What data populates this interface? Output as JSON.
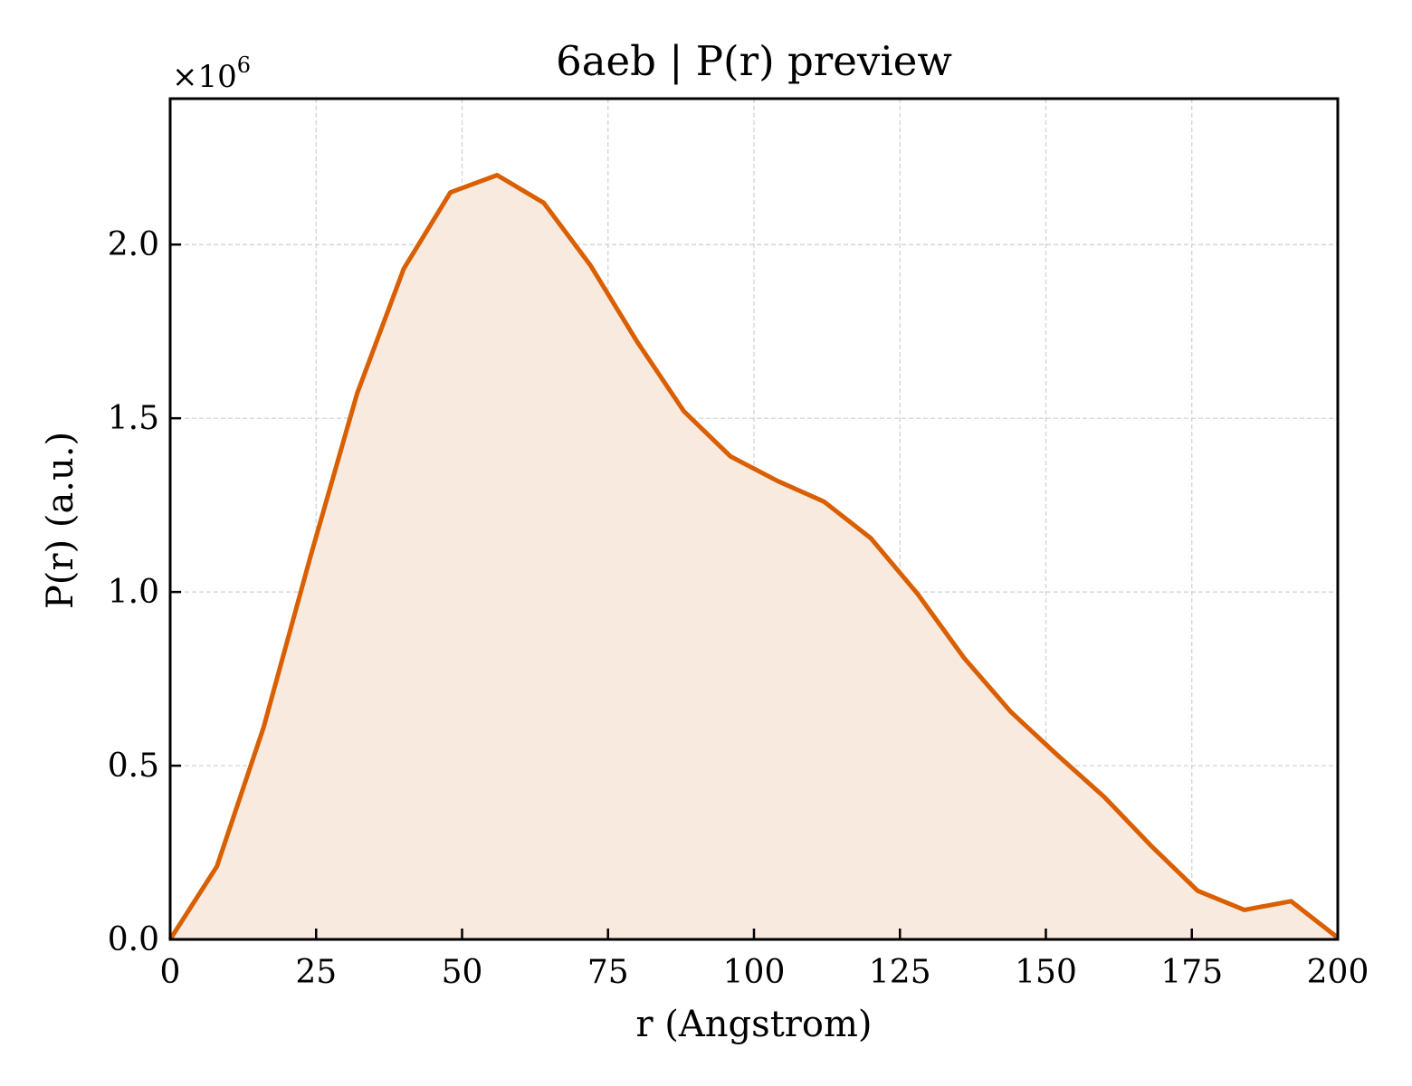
{
  "chart_data": {
    "type": "area",
    "title": "6aeb | P(r) preview",
    "xlabel": "r (Angstrom)",
    "ylabel": "P(r) (a.u.)",
    "y_offset_base": "×10",
    "y_offset_exponent": "6",
    "xlim": [
      0,
      200
    ],
    "ylim": [
      0,
      2.42
    ],
    "x_ticks": [
      0,
      25,
      50,
      75,
      100,
      125,
      150,
      175,
      200
    ],
    "x_tick_labels": [
      "0",
      "25",
      "50",
      "75",
      "100",
      "125",
      "150",
      "175",
      "200"
    ],
    "y_ticks": [
      0,
      0.5,
      1.0,
      1.5,
      2.0
    ],
    "y_tick_labels": [
      "0.0",
      "0.5",
      "1.0",
      "1.5",
      "2.0"
    ],
    "grid": true,
    "line_color": "#d95f02",
    "fill_color": "#f9eadf",
    "series": [
      {
        "x": [
          0,
          8,
          16,
          24,
          32,
          40,
          48,
          56,
          64,
          72,
          80,
          88,
          96,
          104,
          112,
          120,
          128,
          136,
          144,
          152,
          160,
          168,
          176,
          184,
          192,
          200
        ],
        "y": [
          0.0,
          0.21,
          0.61,
          1.1,
          1.57,
          1.93,
          2.15,
          2.2,
          2.12,
          1.94,
          1.72,
          1.52,
          1.39,
          1.32,
          1.26,
          1.155,
          0.995,
          0.81,
          0.655,
          0.53,
          0.41,
          0.27,
          0.14,
          0.085,
          0.11,
          0.005
        ]
      }
    ]
  }
}
